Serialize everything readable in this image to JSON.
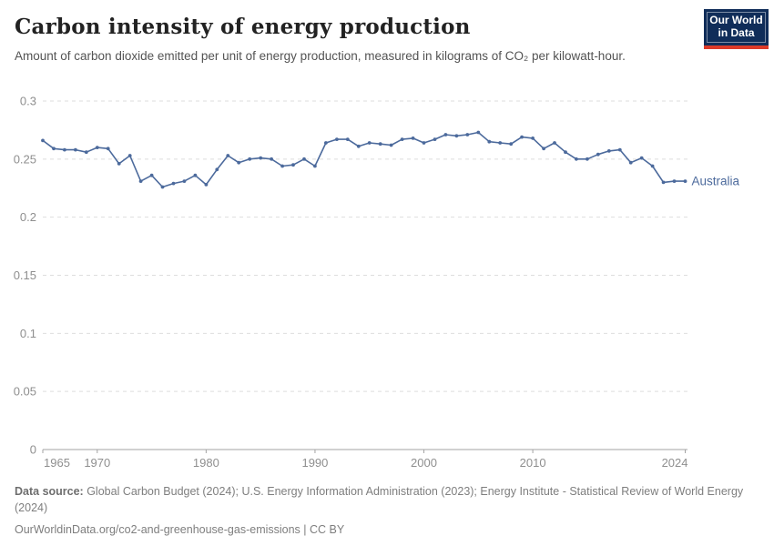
{
  "header": {
    "title": "Carbon intensity of energy production",
    "subtitle": "Amount of carbon dioxide emitted per unit of energy production, measured in kilograms of CO₂ per kilowatt-hour.",
    "logo": {
      "line1": "Our World",
      "line2": "in Data",
      "bg_color": "#102d59",
      "red_bar_color": "#dc3a28"
    }
  },
  "chart_data": {
    "type": "line",
    "title": "Carbon intensity of energy production",
    "xlabel": "",
    "ylabel": "",
    "x": [
      1965,
      1966,
      1967,
      1968,
      1969,
      1970,
      1971,
      1972,
      1973,
      1974,
      1975,
      1976,
      1977,
      1978,
      1979,
      1980,
      1981,
      1982,
      1983,
      1984,
      1985,
      1986,
      1987,
      1988,
      1989,
      1990,
      1991,
      1992,
      1993,
      1994,
      1995,
      1996,
      1997,
      1998,
      1999,
      2000,
      2001,
      2002,
      2003,
      2004,
      2005,
      2006,
      2007,
      2008,
      2009,
      2010,
      2011,
      2012,
      2013,
      2014,
      2015,
      2016,
      2017,
      2018,
      2019,
      2020,
      2021,
      2022,
      2023,
      2024
    ],
    "series": [
      {
        "name": "Australia",
        "color": "#4c6a9c",
        "values": [
          0.266,
          0.259,
          0.258,
          0.258,
          0.256,
          0.26,
          0.259,
          0.246,
          0.253,
          0.231,
          0.236,
          0.226,
          0.229,
          0.231,
          0.236,
          0.228,
          0.241,
          0.253,
          0.247,
          0.25,
          0.251,
          0.25,
          0.244,
          0.245,
          0.25,
          0.244,
          0.264,
          0.267,
          0.267,
          0.261,
          0.264,
          0.263,
          0.262,
          0.267,
          0.268,
          0.264,
          0.267,
          0.271,
          0.27,
          0.271,
          0.273,
          0.265,
          0.264,
          0.263,
          0.269,
          0.268,
          0.259,
          0.264,
          0.256,
          0.25,
          0.25,
          0.254,
          0.257,
          0.258,
          0.247,
          0.251,
          0.244,
          0.23,
          0.231,
          0.231
        ]
      }
    ],
    "ylim": [
      0,
      0.3
    ],
    "yticks": [
      0,
      0.05,
      0.1,
      0.15,
      0.2,
      0.25,
      0.3
    ],
    "ytick_labels": [
      "0",
      "0.05",
      "0.1",
      "0.15",
      "0.2",
      "0.25",
      "0.3"
    ],
    "xticks": [
      1965,
      1970,
      1980,
      1990,
      2000,
      2010,
      2024
    ],
    "xtick_labels": [
      "1965",
      "1970",
      "1980",
      "1990",
      "2000",
      "2010",
      "2024"
    ],
    "grid": true,
    "grid_style": "dashed",
    "legend_position": "end-of-line",
    "entity_label": "Australia",
    "colors": {
      "grid": "#dedede",
      "axis": "#a3a3a3",
      "tick_label": "#8f8f8f"
    }
  },
  "footer": {
    "source_label": "Data source:",
    "source_text": " Global Carbon Budget (2024); U.S. Energy Information Administration (2023); Energy Institute - Statistical Review of World Energy (2024)",
    "link_text": "OurWorldinData.org/co2-and-greenhouse-gas-emissions",
    "license_separator": " | ",
    "license_text": "CC BY"
  }
}
